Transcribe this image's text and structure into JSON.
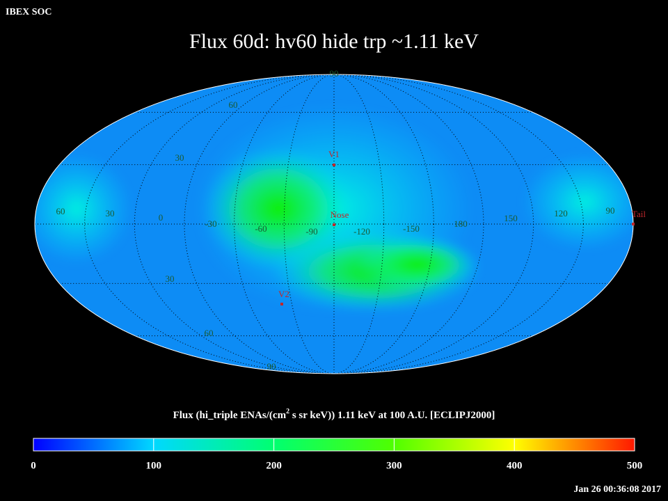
{
  "header": {
    "org": "IBEX SOC",
    "title": "Flux   60d: hv60 hide trp ~1.11 keV"
  },
  "map": {
    "longitude_labels": [
      "60",
      "30",
      "0",
      "-30",
      "-60",
      "-90",
      "-120",
      "-150",
      "180",
      "150",
      "120",
      "90"
    ],
    "latitude_labels": [
      "90",
      "60",
      "30",
      "30",
      "60",
      "90"
    ],
    "markers": [
      {
        "label": "V1"
      },
      {
        "label": "Nose"
      },
      {
        "label": "V2"
      },
      {
        "label": "Tail"
      }
    ],
    "marker_color": "#c0282c"
  },
  "colorbar": {
    "title_parts": [
      "Flux (hi_triple ENAs/(cm",
      "2",
      " s sr keV))  1.11 keV at 100 A.U. [ECLIPJ2000]"
    ],
    "range": [
      0,
      500
    ],
    "ticks": [
      0,
      100,
      200,
      300,
      400,
      500
    ],
    "colors": [
      "#0000ff",
      "#00d8ff",
      "#00ff70",
      "#50ff00",
      "#ffff00",
      "#ff1800"
    ]
  },
  "timestamp": "Jan 26 00:36:08 2017"
}
